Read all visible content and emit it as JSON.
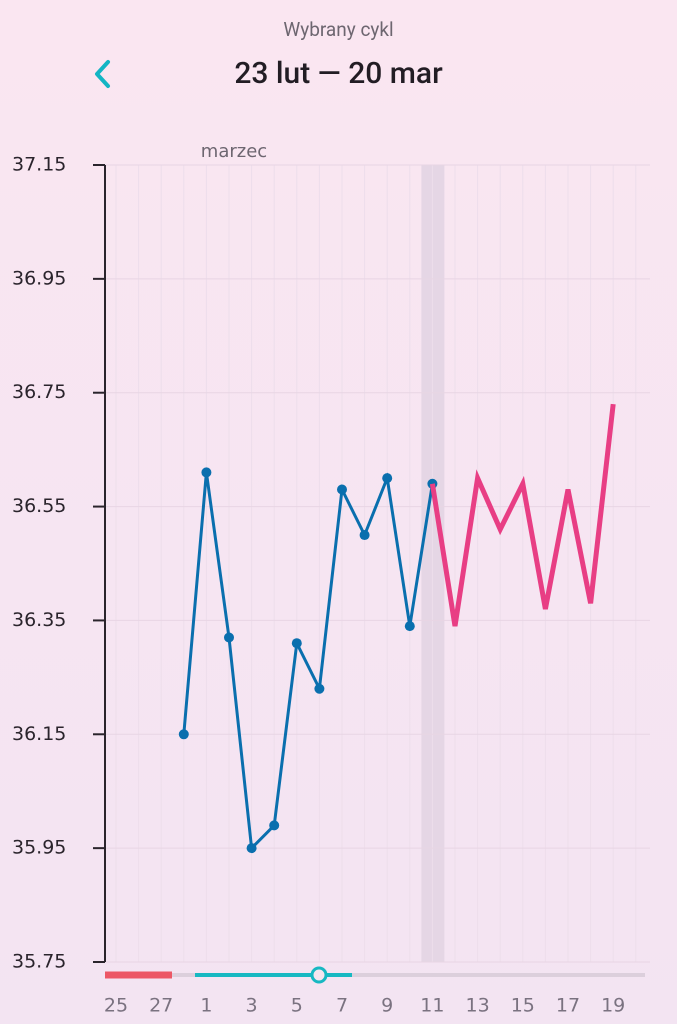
{
  "header": {
    "subtitle": "Wybrany cykl",
    "title": "23 lut — 20 mar"
  },
  "chart_data": {
    "type": "line",
    "month_label": "marzec",
    "categories": [
      "25",
      null,
      "27",
      null,
      "1",
      null,
      "3",
      null,
      "5",
      null,
      "7",
      null,
      "9",
      null,
      "11",
      null,
      "13",
      null,
      "15",
      null,
      "17",
      null,
      "19",
      null
    ],
    "series": [
      {
        "color": "#0a6fae",
        "markers": true,
        "values": [
          null,
          null,
          null,
          36.15,
          36.61,
          36.32,
          35.95,
          35.99,
          36.31,
          36.23,
          36.58,
          36.5,
          36.6,
          36.34,
          36.59,
          null,
          null,
          null,
          null,
          null,
          null,
          null,
          null,
          null
        ]
      },
      {
        "color": "#e83e84",
        "markers": false,
        "values": [
          null,
          null,
          null,
          null,
          null,
          null,
          null,
          null,
          null,
          null,
          null,
          null,
          null,
          null,
          36.59,
          36.34,
          36.6,
          36.51,
          36.59,
          36.37,
          36.58,
          36.38,
          36.73,
          null
        ]
      }
    ],
    "highlight_index": 14,
    "ylim": [
      35.75,
      37.15
    ],
    "yticks": [
      37.15,
      36.95,
      36.75,
      36.55,
      36.35,
      36.15,
      35.95,
      35.75
    ],
    "grid": true
  }
}
